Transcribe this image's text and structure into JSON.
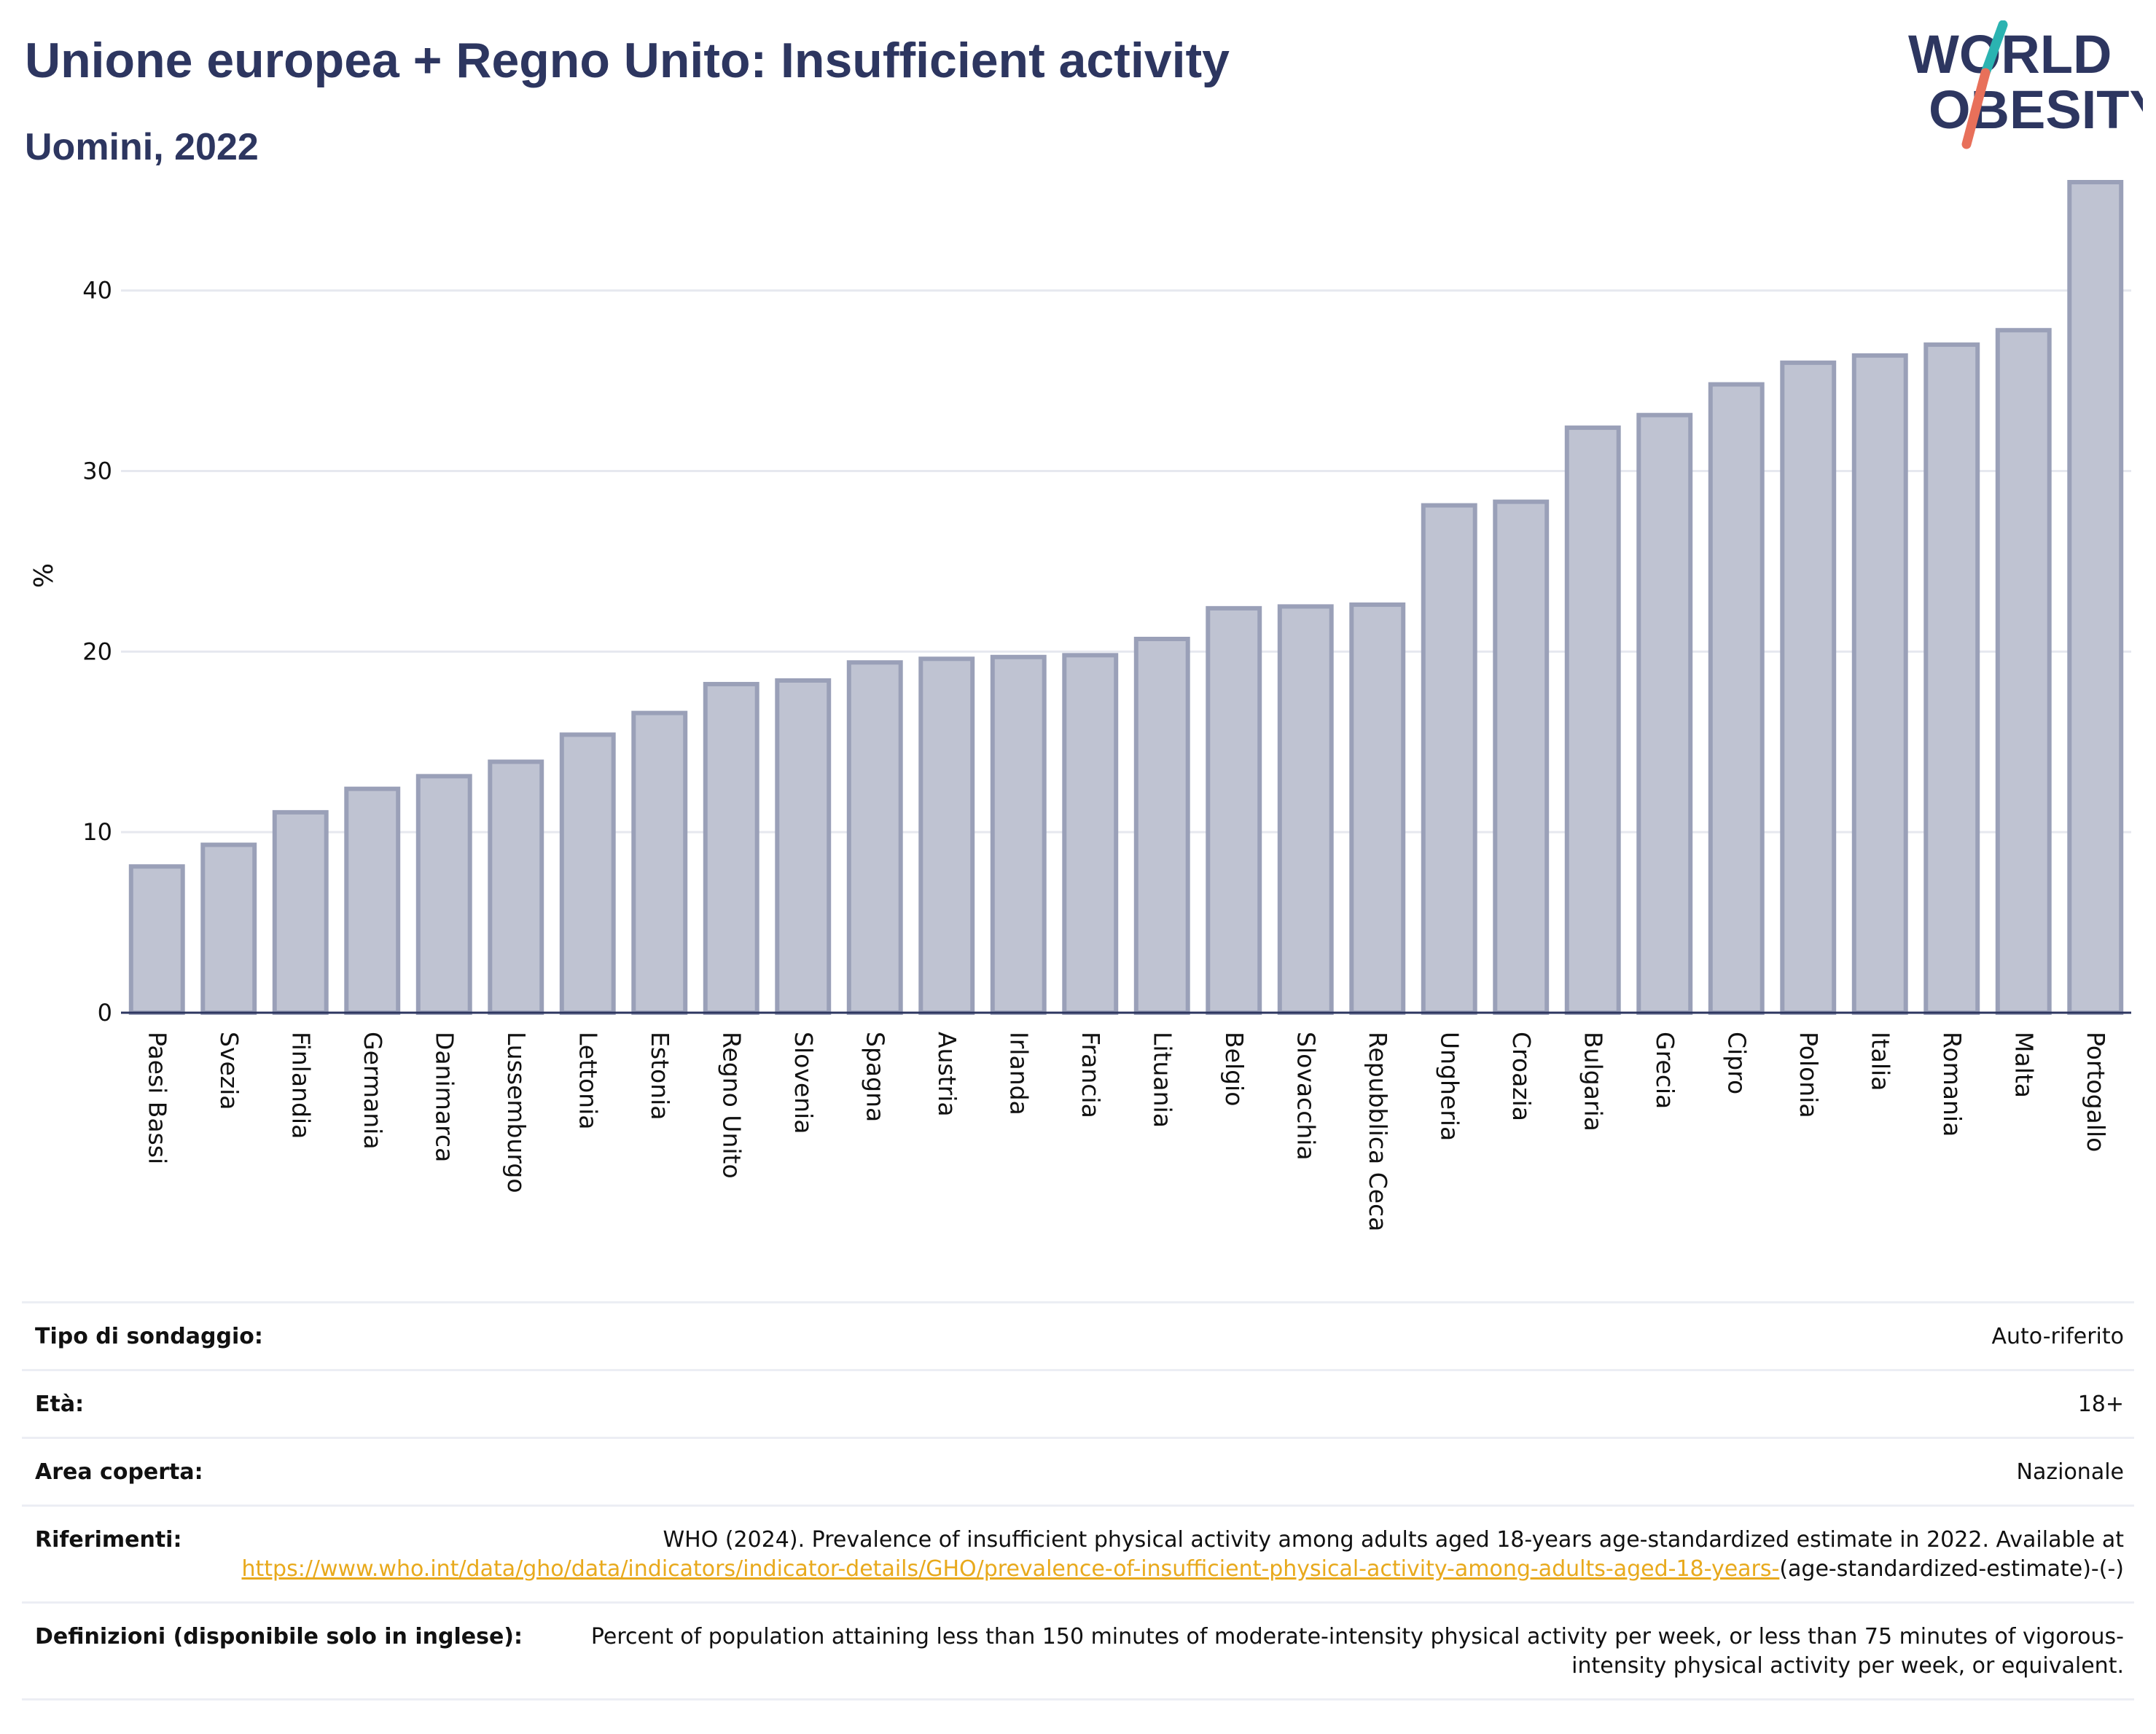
{
  "header": {
    "title": "Unione europea + Regno Unito: Insufficient activity",
    "subtitle": "Uomini, 2022",
    "logo_line1": "WORLD",
    "logo_line2": "OBESITY"
  },
  "colors": {
    "title": "#2d3660",
    "bar_fill": "#bfc3d2",
    "bar_stroke": "#9aa0b8",
    "grid": "#e6e8ef",
    "link": "#e8a91c",
    "logo_teal": "#2bb3b1",
    "logo_coral": "#e8705a"
  },
  "chart_data": {
    "type": "bar",
    "title": "Unione europea + Regno Unito: Insufficient activity",
    "subtitle": "Uomini, 2022",
    "xlabel": "",
    "ylabel": "%",
    "ylim": [
      0,
      46
    ],
    "yticks": [
      0,
      10,
      20,
      30,
      40
    ],
    "grid": true,
    "categories": [
      "Paesi Bassi",
      "Svezia",
      "Finlandia",
      "Germania",
      "Danimarca",
      "Lussemburgo",
      "Lettonia",
      "Estonia",
      "Regno Unito",
      "Slovenia",
      "Spagna",
      "Austria",
      "Irlanda",
      "Francia",
      "Lituania",
      "Belgio",
      "Slovacchia",
      "Repubblica Ceca",
      "Ungheria",
      "Croazia",
      "Bulgaria",
      "Grecia",
      "Cipro",
      "Polonia",
      "Italia",
      "Romania",
      "Malta",
      "Portogallo"
    ],
    "values": [
      8.1,
      9.3,
      11.1,
      12.4,
      13.1,
      13.9,
      15.4,
      16.6,
      18.2,
      18.4,
      19.4,
      19.6,
      19.7,
      19.8,
      20.7,
      22.4,
      22.5,
      22.6,
      28.1,
      28.3,
      32.4,
      33.1,
      34.8,
      36.0,
      36.4,
      37.0,
      37.8,
      46.0
    ]
  },
  "meta": {
    "rows": [
      {
        "label": "Tipo di sondaggio:",
        "value": "Auto-riferito"
      },
      {
        "label": "Età:",
        "value": "18+"
      },
      {
        "label": "Area coperta:",
        "value": "Nazionale"
      },
      {
        "label": "Riferimenti:",
        "value": "WHO (2024). Prevalence of insufficient physical activity among adults aged 18-years age-standardized estimate in 2022. Available at",
        "link": "https://www.who.int/data/gho/data/indicators/indicator-details/GHO/prevalence-of-insufficient-physical-activity-among-adults-aged-18-years-",
        "suffix": "(age-standardized-estimate)-(-)"
      },
      {
        "label": "Definizioni (disponibile solo in inglese):",
        "value": "Percent of population attaining less than 150 minutes of moderate-intensity physical activity per week, or less than 75 minutes of vigorous-intensity physical activity per week, or equivalent."
      }
    ]
  }
}
